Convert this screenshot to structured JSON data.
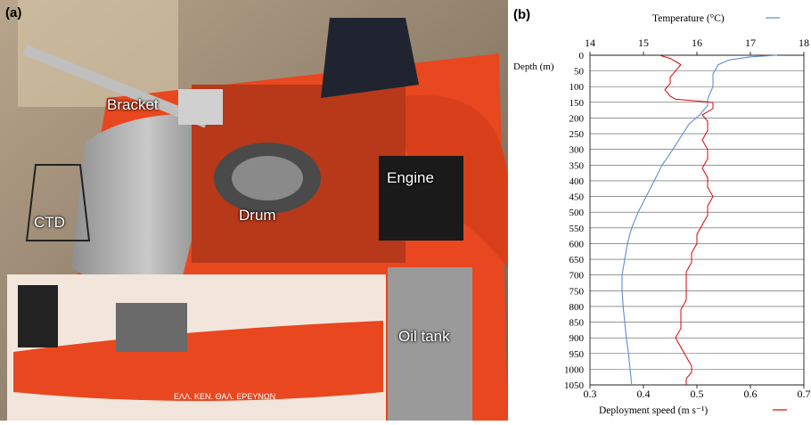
{
  "panel_a": {
    "letter": "(a)",
    "labels": {
      "bracket": "Bracket",
      "drum": "Drum",
      "engine": "Engine",
      "ctd": "CTD",
      "oil_tank": "Oil tank"
    },
    "boat_text": "ΕΛΛ. ΚΕΝ. ΘΑΛ. ΕΡΕΥΝΩΝ"
  },
  "panel_b": {
    "letter": "(b)"
  },
  "colors": {
    "temperature": "#5b8fd6",
    "speed": "#e00000",
    "hull": "#e8471f",
    "tube": "#a9a9a9"
  },
  "chart_data": {
    "type": "line",
    "ylabel": "Depth (m)",
    "y_ticks": [
      0,
      50,
      100,
      150,
      200,
      250,
      300,
      350,
      400,
      450,
      500,
      550,
      600,
      650,
      700,
      750,
      800,
      850,
      900,
      950,
      1000,
      1050
    ],
    "y_reversed": true,
    "ylim": [
      0,
      1050
    ],
    "top_axis": {
      "label": "Temperature (°C)",
      "ticks": [
        14,
        15,
        16,
        17,
        18
      ],
      "range": [
        14,
        18
      ]
    },
    "bottom_axis": {
      "label": "Deployment speed (m s⁻¹)",
      "ticks": [
        "0.3",
        "0.4",
        "0.5",
        "0.6",
        "0.7"
      ],
      "range": [
        0.3,
        0.7
      ]
    },
    "series": [
      {
        "name": "Temperature (°C)",
        "axis": "top",
        "points": [
          [
            17.5,
            0
          ],
          [
            17.0,
            5
          ],
          [
            16.6,
            15
          ],
          [
            16.4,
            30
          ],
          [
            16.3,
            60
          ],
          [
            16.3,
            100
          ],
          [
            16.2,
            140
          ],
          [
            16.2,
            160
          ],
          [
            16.05,
            190
          ],
          [
            15.85,
            220
          ],
          [
            15.7,
            260
          ],
          [
            15.55,
            300
          ],
          [
            15.35,
            350
          ],
          [
            15.2,
            400
          ],
          [
            15.05,
            450
          ],
          [
            14.9,
            500
          ],
          [
            14.78,
            550
          ],
          [
            14.7,
            600
          ],
          [
            14.65,
            650
          ],
          [
            14.6,
            700
          ],
          [
            14.6,
            750
          ],
          [
            14.62,
            800
          ],
          [
            14.65,
            850
          ],
          [
            14.68,
            900
          ],
          [
            14.72,
            950
          ],
          [
            14.75,
            1000
          ],
          [
            14.78,
            1050
          ]
        ]
      },
      {
        "name": "Deployment speed (m s⁻¹)",
        "axis": "bottom",
        "points": [
          [
            0.43,
            0
          ],
          [
            0.45,
            10
          ],
          [
            0.47,
            30
          ],
          [
            0.46,
            50
          ],
          [
            0.45,
            70
          ],
          [
            0.45,
            90
          ],
          [
            0.44,
            110
          ],
          [
            0.45,
            130
          ],
          [
            0.46,
            140
          ],
          [
            0.53,
            150
          ],
          [
            0.53,
            170
          ],
          [
            0.51,
            190
          ],
          [
            0.52,
            210
          ],
          [
            0.52,
            240
          ],
          [
            0.51,
            270
          ],
          [
            0.52,
            300
          ],
          [
            0.52,
            330
          ],
          [
            0.51,
            360
          ],
          [
            0.52,
            390
          ],
          [
            0.52,
            420
          ],
          [
            0.53,
            450
          ],
          [
            0.52,
            480
          ],
          [
            0.52,
            510
          ],
          [
            0.51,
            540
          ],
          [
            0.5,
            570
          ],
          [
            0.5,
            600
          ],
          [
            0.49,
            630
          ],
          [
            0.49,
            660
          ],
          [
            0.48,
            690
          ],
          [
            0.48,
            720
          ],
          [
            0.48,
            750
          ],
          [
            0.48,
            780
          ],
          [
            0.47,
            810
          ],
          [
            0.47,
            840
          ],
          [
            0.47,
            870
          ],
          [
            0.46,
            900
          ],
          [
            0.47,
            930
          ],
          [
            0.48,
            960
          ],
          [
            0.49,
            990
          ],
          [
            0.49,
            1010
          ],
          [
            0.48,
            1030
          ],
          [
            0.48,
            1050
          ]
        ]
      }
    ]
  }
}
